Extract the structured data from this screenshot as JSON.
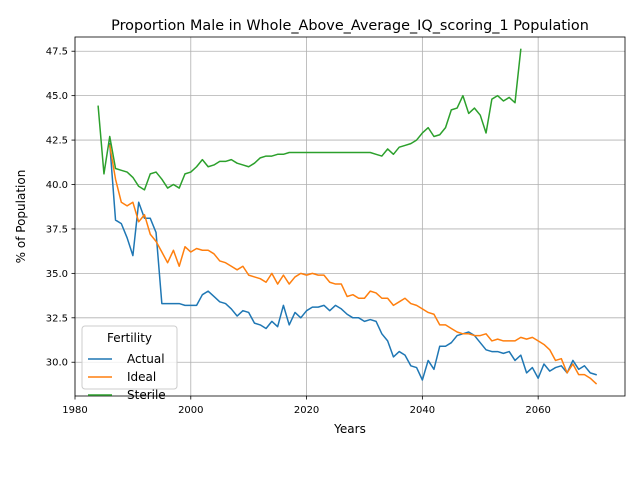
{
  "chart_data": {
    "type": "line",
    "title": "Proportion Male in Whole_Above_Average_IQ_scoring_1 Population",
    "xlabel": "Years",
    "ylabel": "% of Population",
    "xlim": [
      1980.0,
      2075.0
    ],
    "ylim": [
      28.1,
      48.3
    ],
    "xticks": [
      1980,
      2000,
      2020,
      2040,
      2060
    ],
    "xtick_labels": [
      "1980",
      "2000",
      "2020",
      "2040",
      "2060"
    ],
    "yticks": [
      30.0,
      32.5,
      35.0,
      37.5,
      40.0,
      42.5,
      45.0,
      47.5
    ],
    "ytick_labels": [
      "30.0",
      "32.5",
      "35.0",
      "37.5",
      "40.0",
      "42.5",
      "45.0",
      "47.5"
    ],
    "grid": true,
    "legend": {
      "title": "Fertility",
      "position": "lower-left"
    },
    "series": [
      {
        "name": "Actual",
        "color": "#1f77b4",
        "x": [
          1986,
          1987,
          1988,
          1989,
          1990,
          1991,
          1992,
          1993,
          1994,
          1995,
          1996,
          1997,
          1998,
          1999,
          2000,
          2001,
          2002,
          2003,
          2004,
          2005,
          2006,
          2007,
          2008,
          2009,
          2010,
          2011,
          2012,
          2013,
          2014,
          2015,
          2016,
          2017,
          2018,
          2019,
          2020,
          2021,
          2022,
          2023,
          2024,
          2025,
          2026,
          2027,
          2028,
          2029,
          2030,
          2031,
          2032,
          2033,
          2034,
          2035,
          2036,
          2037,
          2038,
          2039,
          2040,
          2041,
          2042,
          2043,
          2044,
          2045,
          2046,
          2047,
          2048,
          2049,
          2050,
          2051,
          2052,
          2053,
          2054,
          2055,
          2056,
          2057,
          2058,
          2059,
          2060,
          2061,
          2062,
          2063,
          2064,
          2065,
          2066,
          2067,
          2068,
          2069,
          2070
        ],
        "values": [
          42.3,
          38.0,
          37.8,
          37.0,
          36.0,
          39.0,
          38.1,
          38.1,
          37.3,
          33.3,
          33.3,
          33.3,
          33.3,
          33.2,
          33.2,
          33.2,
          33.8,
          34.0,
          33.7,
          33.4,
          33.3,
          33.0,
          32.6,
          32.9,
          32.8,
          32.2,
          32.1,
          31.9,
          32.3,
          32.0,
          33.2,
          32.1,
          32.8,
          32.5,
          32.9,
          33.1,
          33.1,
          33.2,
          32.9,
          33.2,
          33.0,
          32.7,
          32.5,
          32.5,
          32.3,
          32.4,
          32.3,
          31.6,
          31.2,
          30.3,
          30.6,
          30.4,
          29.8,
          29.7,
          29.0,
          30.1,
          29.6,
          30.9,
          30.9,
          31.1,
          31.5,
          31.6,
          31.7,
          31.5,
          31.1,
          30.7,
          30.6,
          30.6,
          30.5,
          30.6,
          30.1,
          30.4,
          29.4,
          29.7,
          29.1,
          29.9,
          29.5,
          29.7,
          29.8,
          29.4,
          30.1,
          29.6,
          29.8,
          29.4,
          29.3
        ]
      },
      {
        "name": "Ideal",
        "color": "#ff7f0e",
        "x": [
          1986,
          1987,
          1988,
          1989,
          1990,
          1991,
          1992,
          1993,
          1994,
          1995,
          1996,
          1997,
          1998,
          1999,
          2000,
          2001,
          2002,
          2003,
          2004,
          2005,
          2006,
          2007,
          2008,
          2009,
          2010,
          2011,
          2012,
          2013,
          2014,
          2015,
          2016,
          2017,
          2018,
          2019,
          2020,
          2021,
          2022,
          2023,
          2024,
          2025,
          2026,
          2027,
          2028,
          2029,
          2030,
          2031,
          2032,
          2033,
          2034,
          2035,
          2036,
          2037,
          2038,
          2039,
          2040,
          2041,
          2042,
          2043,
          2044,
          2045,
          2046,
          2047,
          2048,
          2049,
          2050,
          2051,
          2052,
          2053,
          2054,
          2055,
          2056,
          2057,
          2058,
          2059,
          2060,
          2061,
          2062,
          2063,
          2064,
          2065,
          2066,
          2067,
          2068,
          2069,
          2070
        ],
        "values": [
          42.2,
          40.3,
          39.0,
          38.8,
          39.0,
          37.9,
          38.3,
          37.2,
          36.8,
          36.2,
          35.6,
          36.3,
          35.4,
          36.5,
          36.2,
          36.4,
          36.3,
          36.3,
          36.1,
          35.7,
          35.6,
          35.4,
          35.2,
          35.4,
          34.9,
          34.8,
          34.7,
          34.5,
          35.0,
          34.4,
          34.9,
          34.4,
          34.8,
          35.0,
          34.9,
          35.0,
          34.9,
          34.9,
          34.5,
          34.4,
          34.4,
          33.7,
          33.8,
          33.6,
          33.6,
          34.0,
          33.9,
          33.6,
          33.6,
          33.2,
          33.4,
          33.6,
          33.3,
          33.2,
          33.0,
          32.8,
          32.7,
          32.1,
          32.1,
          31.9,
          31.7,
          31.6,
          31.6,
          31.5,
          31.5,
          31.6,
          31.2,
          31.3,
          31.2,
          31.2,
          31.2,
          31.4,
          31.3,
          31.4,
          31.2,
          31.0,
          30.7,
          30.1,
          30.2,
          29.4,
          29.9,
          29.3,
          29.3,
          29.1,
          28.8
        ]
      },
      {
        "name": "Sterile",
        "color": "#2ca02c",
        "x": [
          1984,
          1985,
          1986,
          1987,
          1988,
          1989,
          1990,
          1991,
          1992,
          1993,
          1994,
          1995,
          1996,
          1997,
          1998,
          1999,
          2000,
          2001,
          2002,
          2003,
          2004,
          2005,
          2006,
          2007,
          2008,
          2009,
          2010,
          2011,
          2012,
          2013,
          2014,
          2015,
          2016,
          2017,
          2018,
          2019,
          2020,
          2021,
          2022,
          2023,
          2024,
          2025,
          2026,
          2027,
          2028,
          2029,
          2030,
          2031,
          2032,
          2033,
          2034,
          2035,
          2036,
          2037,
          2038,
          2039,
          2040,
          2041,
          2042,
          2043,
          2044,
          2045,
          2046,
          2047,
          2048,
          2049,
          2050,
          2051,
          2052,
          2053,
          2054,
          2055,
          2056,
          2057
        ],
        "values": [
          44.4,
          40.6,
          42.7,
          40.9,
          40.8,
          40.7,
          40.4,
          39.9,
          39.7,
          40.6,
          40.7,
          40.3,
          39.8,
          40.0,
          39.8,
          40.6,
          40.7,
          41.0,
          41.4,
          41.0,
          41.1,
          41.3,
          41.3,
          41.4,
          41.2,
          41.1,
          41.0,
          41.2,
          41.5,
          41.6,
          41.6,
          41.7,
          41.7,
          41.8,
          41.8,
          41.8,
          41.8,
          41.8,
          41.8,
          41.8,
          41.8,
          41.8,
          41.8,
          41.8,
          41.8,
          41.8,
          41.8,
          41.8,
          41.7,
          41.6,
          42.0,
          41.7,
          42.1,
          42.2,
          42.3,
          42.5,
          42.9,
          43.2,
          42.7,
          42.8,
          43.2,
          44.2,
          44.3,
          45.0,
          44.0,
          44.3,
          43.9,
          42.9,
          44.8,
          45.0,
          44.7,
          44.9,
          44.6,
          47.6
        ]
      }
    ]
  }
}
